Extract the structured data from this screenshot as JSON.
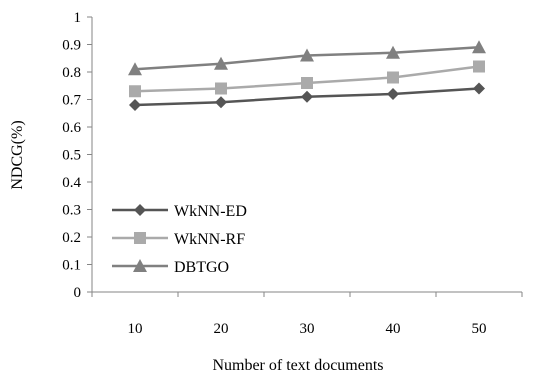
{
  "chart_data": {
    "type": "line",
    "xlabel": "Number of text documents",
    "ylabel": "NDCG(%)",
    "categories": [
      "10",
      "20",
      "30",
      "40",
      "50"
    ],
    "ylim": [
      0,
      1
    ],
    "yticks": [
      "0",
      "0.1",
      "0.2",
      "0.3",
      "0.4",
      "0.5",
      "0.6",
      "0.7",
      "0.8",
      "0.9",
      "1"
    ],
    "grid": false,
    "legend_position": "bottom-left",
    "series": [
      {
        "name": "WkNN-ED",
        "values": [
          0.68,
          0.69,
          0.71,
          0.72,
          0.74
        ],
        "color": "#555555",
        "marker": "diamond"
      },
      {
        "name": "WkNN-RF",
        "values": [
          0.73,
          0.74,
          0.76,
          0.78,
          0.82
        ],
        "color": "#aaaaaa",
        "marker": "square"
      },
      {
        "name": "DBTGO",
        "values": [
          0.81,
          0.83,
          0.86,
          0.87,
          0.89
        ],
        "color": "#808080",
        "marker": "triangle"
      }
    ]
  }
}
